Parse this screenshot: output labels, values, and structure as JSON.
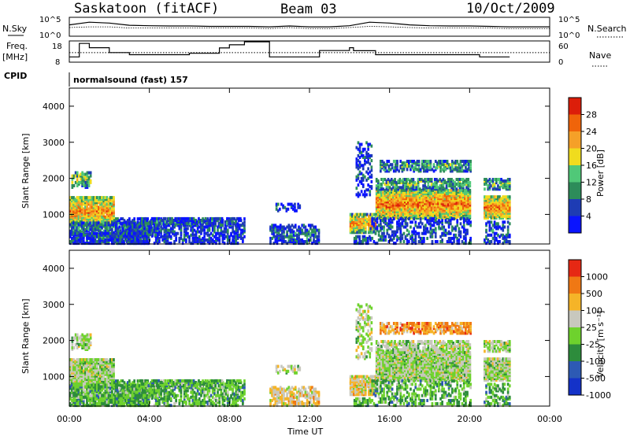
{
  "header": {
    "station": "Saskatoon (fitACF)",
    "beam": "Beam 03",
    "date": "10/Oct/2009"
  },
  "panel_labels": {
    "nsky": "N.Sky",
    "nsearch": "N.Search",
    "freq_line1": "Freq.",
    "freq_line2": "[MHz]",
    "nave": "Nave",
    "cpid": "CPID",
    "program": "normalsound (fast) 157"
  },
  "noise_axis": {
    "left_ticks": [
      "10^5",
      "10^0"
    ],
    "right_ticks": [
      "10^5",
      "10^0"
    ]
  },
  "freq_axis": {
    "left_ticks": [
      "18",
      "8"
    ],
    "right_ticks": [
      "60",
      "0"
    ]
  },
  "colors": {
    "power_scale": [
      "#0a14ff",
      "#1e3cb4",
      "#2d8c5a",
      "#50c878",
      "#f0dc1e",
      "#f5a028",
      "#f0640a",
      "#dc1e0a"
    ],
    "velocity_scale": [
      "#1432c8",
      "#2d5ab4",
      "#2d8c3c",
      "#6ed22d",
      "#c8c8be",
      "#f5b428",
      "#f07814",
      "#e62814"
    ]
  },
  "chart_data": [
    {
      "type": "line",
      "name": "noise",
      "x_range": [
        "00:00",
        "00:00"
      ],
      "series": [
        {
          "name": "N.Sky",
          "x": [
            0,
            1,
            2,
            3,
            4,
            5,
            6,
            7,
            8,
            9,
            10,
            11,
            12,
            13,
            14,
            15,
            16,
            17,
            18,
            19,
            20,
            21,
            22,
            23,
            24
          ],
          "values": [
            1000,
            5000,
            3000,
            800,
            600,
            500,
            500,
            400,
            400,
            400,
            300,
            500,
            300,
            300,
            600,
            5000,
            3000,
            1000,
            600,
            500,
            500,
            400,
            300,
            300,
            300
          ]
        },
        {
          "name": "N.Search",
          "x": [
            0,
            1,
            2,
            3,
            4,
            5,
            6,
            7,
            8,
            9,
            10,
            11,
            12,
            13,
            14,
            15,
            16,
            17,
            18,
            19,
            20,
            21,
            22,
            23,
            24
          ],
          "values": [
            200,
            300,
            300,
            150,
            150,
            150,
            150,
            150,
            150,
            150,
            100,
            200,
            100,
            100,
            200,
            400,
            300,
            200,
            150,
            150,
            150,
            150,
            100,
            100,
            100
          ]
        }
      ]
    },
    {
      "type": "line",
      "name": "frequency",
      "series": [
        {
          "name": "Freq.",
          "x": [
            0,
            0.5,
            1,
            1.5,
            2,
            2.5,
            3,
            4,
            5,
            6,
            7,
            7.5,
            8,
            8.75,
            10,
            12.5,
            14,
            14.2,
            15,
            15.3,
            20,
            20.5,
            22
          ],
          "values": [
            10.5,
            16.8,
            14.8,
            14.8,
            12.5,
            12.5,
            11.5,
            11.5,
            11.5,
            12.2,
            12.2,
            14.7,
            16.2,
            17.6,
            10.5,
            13.5,
            14.8,
            13.4,
            13.4,
            11.5,
            11.5,
            10.5,
            10.5
          ]
        },
        {
          "name": "Nave",
          "x": [
            0,
            24
          ],
          "values": [
            27,
            27
          ]
        }
      ]
    },
    {
      "type": "heatmap",
      "name": "power",
      "ylabel": "Slant Range [km]",
      "yticks": [
        "1000",
        "2000",
        "3000",
        "4000"
      ],
      "y_range": [
        180,
        4500
      ],
      "colorbar_label": "Power [dB]",
      "colorbar_ticks": [
        "4",
        "8",
        "12",
        "16",
        "20",
        "24",
        "28"
      ],
      "colorbar_range": [
        0,
        32
      ]
    },
    {
      "type": "heatmap",
      "name": "velocity",
      "ylabel": "Slant Range [km]",
      "yticks": [
        "1000",
        "2000",
        "3000",
        "4000"
      ],
      "y_range": [
        180,
        4500
      ],
      "colorbar_label": "Velocity [m s⁻¹]",
      "colorbar_ticks": [
        "1000",
        "500",
        "100",
        "25",
        "-25",
        "-100",
        "-500",
        "-1000"
      ],
      "xlabel": "Time UT",
      "xticks": [
        "00:00",
        "04:00",
        "08:00",
        "12:00",
        "16:00",
        "20:00",
        "00:00"
      ]
    }
  ]
}
